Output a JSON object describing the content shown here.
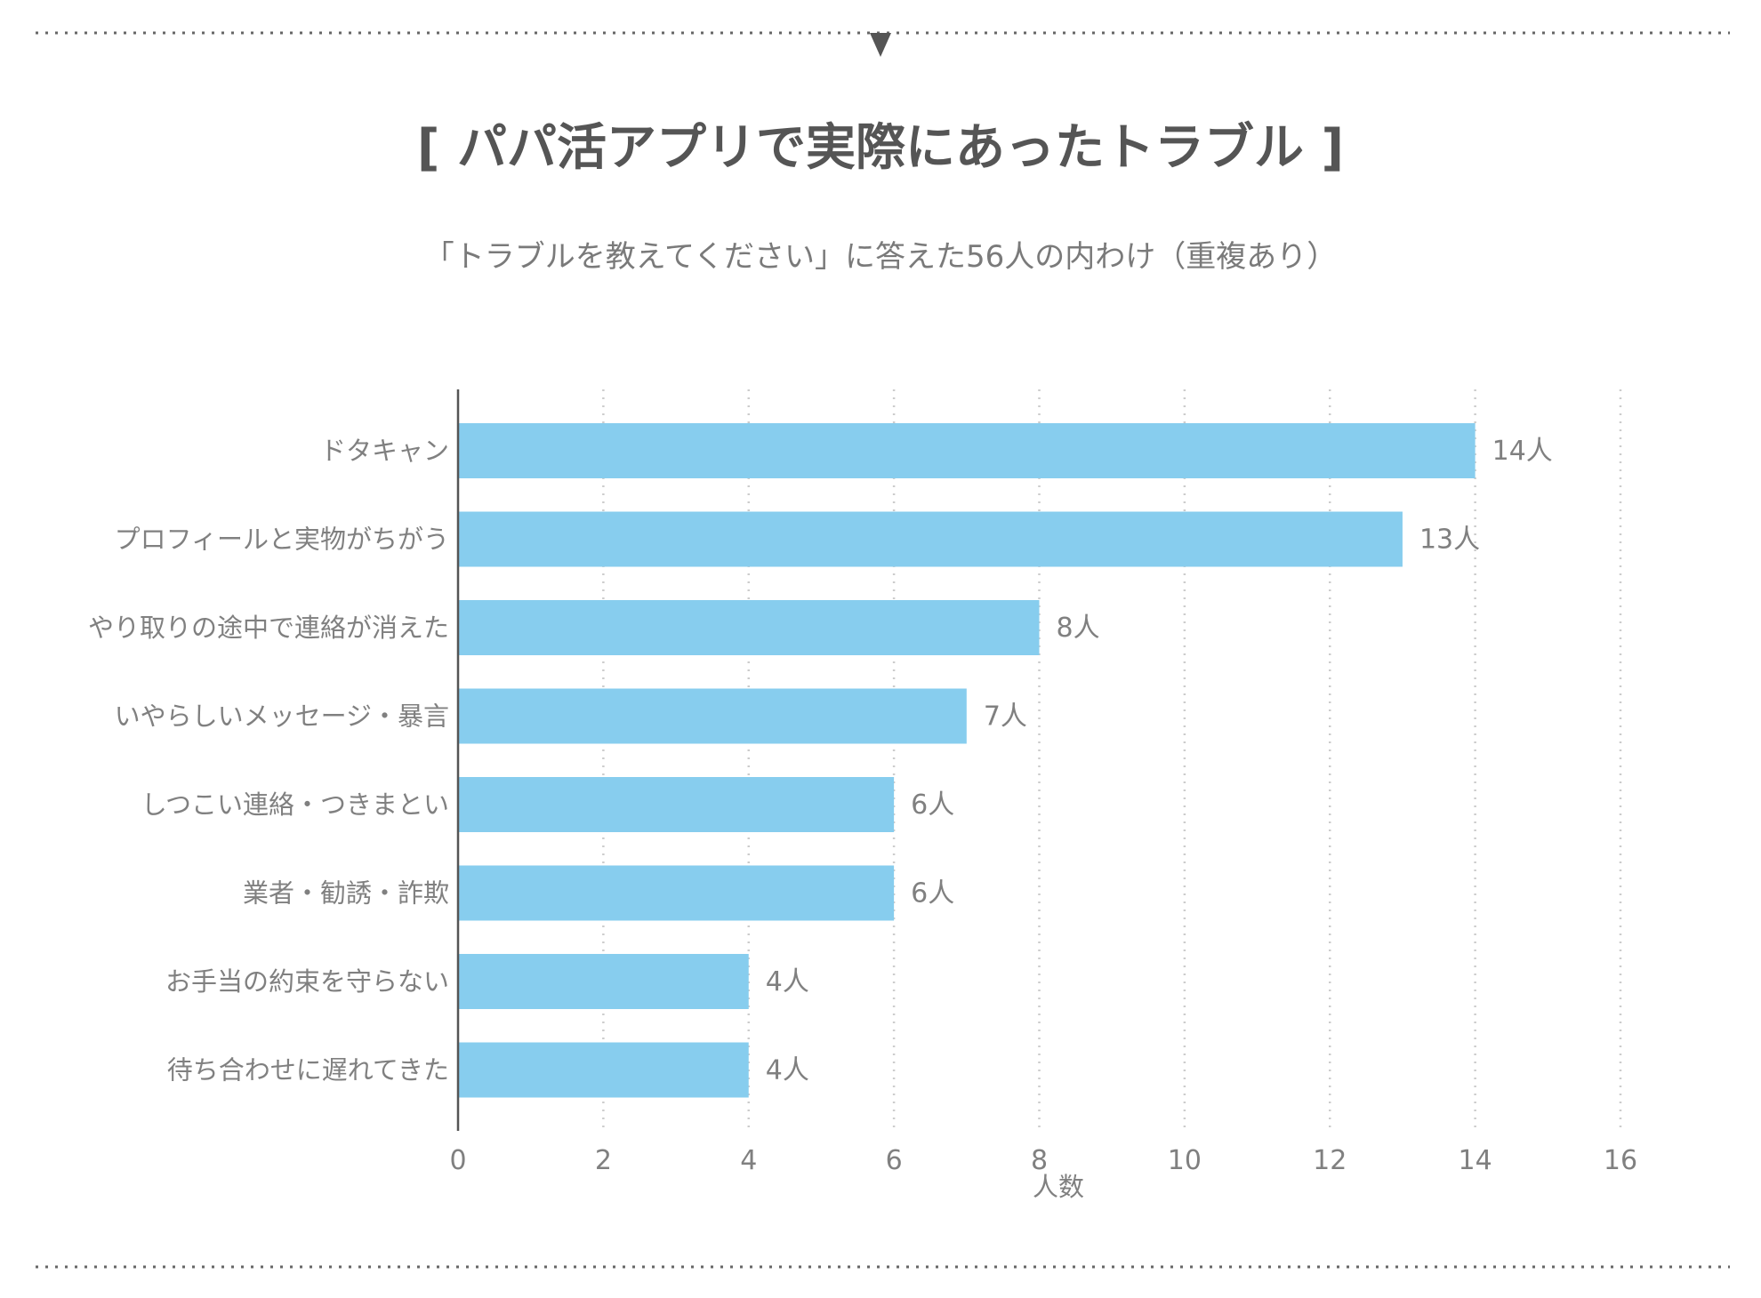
{
  "header": {
    "title": "[ パパ活アプリで実際にあったトラブル ]",
    "subtitle": "「トラブルを教えてください」に答えた56人の内わけ（重複あり）"
  },
  "chart_data": {
    "type": "bar",
    "orientation": "horizontal",
    "title": "[ パパ活アプリで実際にあったトラブル ]",
    "subtitle": "「トラブルを教えてください」に答えた56人の内わけ（重複あり）",
    "categories": [
      "ドタキャン",
      "プロフィールと実物がちがう",
      "やり取りの途中で連絡が消えた",
      "いやらしいメッセージ・暴言",
      "しつこい連絡・つきまとい",
      "業者・勧誘・詐欺",
      "お手当の約束を守らない",
      "待ち合わせに遅れてきた"
    ],
    "values": [
      14,
      13,
      8,
      7,
      6,
      6,
      4,
      4
    ],
    "value_labels": [
      "14人",
      "13人",
      "8人",
      "7人",
      "6人",
      "6人",
      "4人",
      "4人"
    ],
    "xlabel": "人数",
    "ylabel": "",
    "xlim": [
      0,
      16
    ],
    "xticks": [
      0,
      2,
      4,
      6,
      8,
      10,
      12,
      14,
      16
    ],
    "grid": true,
    "bar_color": "#87cdee",
    "axis_color": "#555555",
    "grid_color": "#cccccc",
    "divider_color": "#666666"
  }
}
